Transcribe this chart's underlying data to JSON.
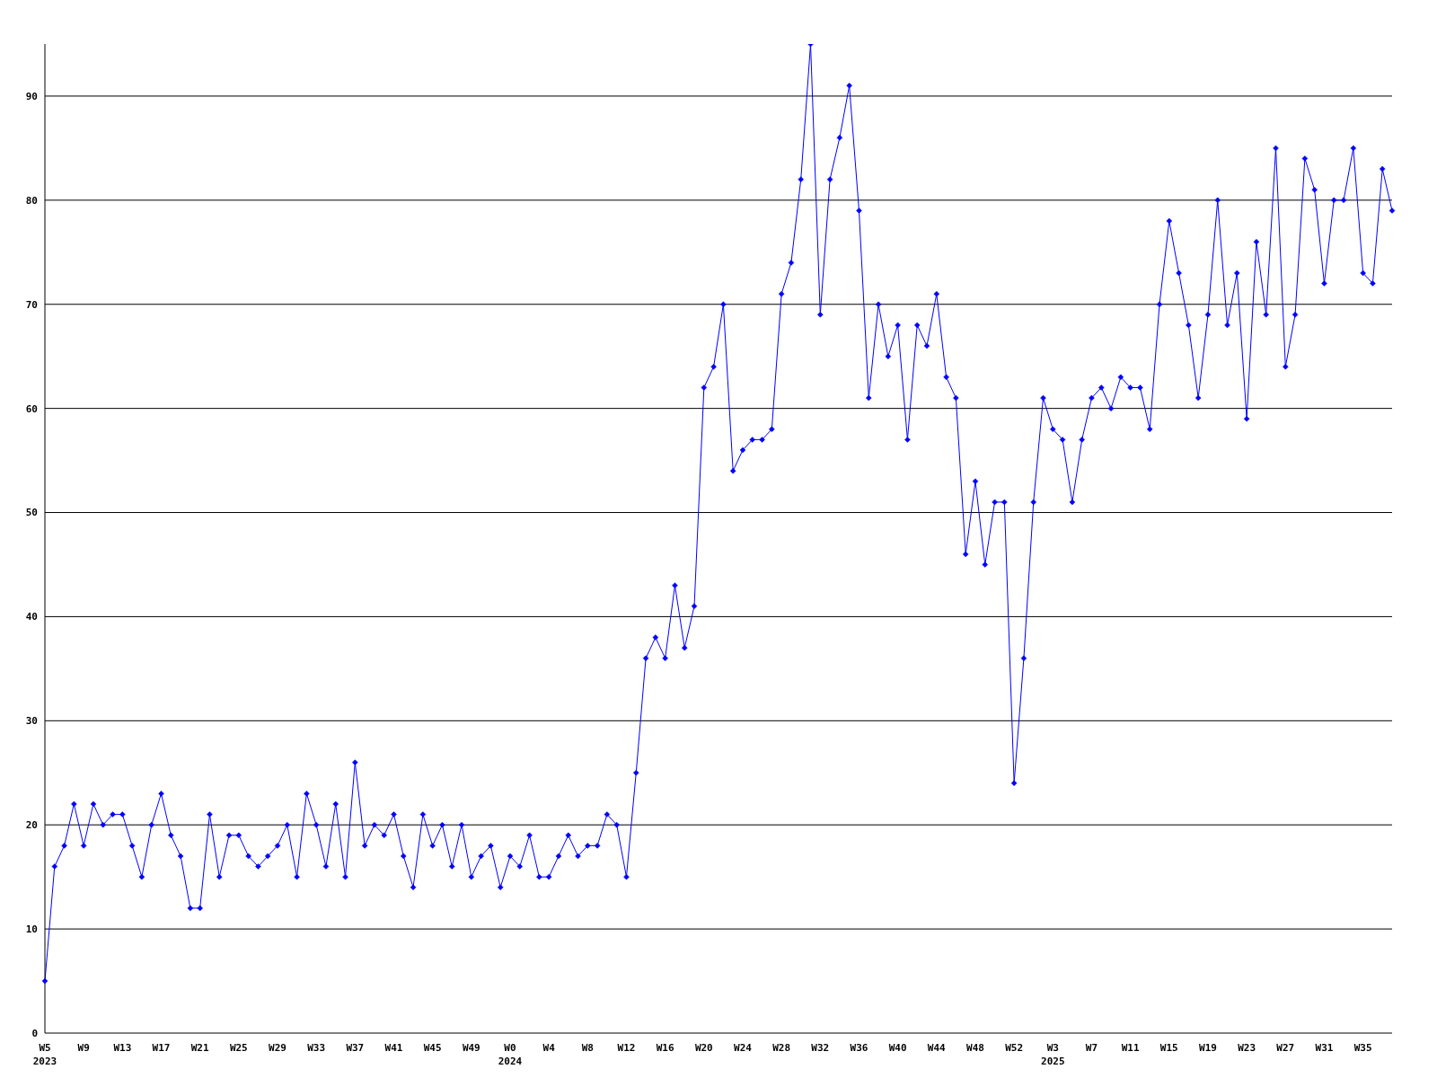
{
  "chart_data": {
    "type": "line",
    "categories": [
      "W5",
      null,
      null,
      null,
      "W9",
      null,
      null,
      null,
      "W13",
      null,
      null,
      null,
      "W17",
      null,
      null,
      null,
      "W21",
      null,
      null,
      null,
      "W25",
      null,
      null,
      null,
      "W29",
      null,
      null,
      null,
      "W33",
      null,
      null,
      null,
      "W37",
      null,
      null,
      null,
      "W41",
      null,
      null,
      null,
      "W45",
      null,
      null,
      null,
      "W49",
      null,
      null,
      null,
      "W0",
      null,
      null,
      null,
      "W4",
      null,
      null,
      null,
      "W8",
      null,
      null,
      null,
      "W12",
      null,
      null,
      null,
      "W16",
      null,
      null,
      null,
      "W20",
      null,
      null,
      null,
      "W24",
      null,
      null,
      null,
      "W28",
      null,
      null,
      null,
      "W32",
      null,
      null,
      null,
      "W36",
      null,
      null,
      null,
      "W40",
      null,
      null,
      null,
      "W44",
      null,
      null,
      null,
      "W48",
      null,
      null,
      null,
      "W52",
      null,
      null,
      null,
      "W3",
      null,
      null,
      null,
      "W7",
      null,
      null,
      null,
      "W11",
      null,
      null,
      null,
      "W15",
      null,
      null,
      null,
      "W19",
      null,
      null,
      null,
      "W23",
      null,
      null,
      null,
      "W27",
      null,
      null,
      null,
      "W31",
      null,
      null,
      null,
      "W35",
      null,
      null,
      null
    ],
    "series": [
      {
        "color": "#0000ff",
        "values": [
          5,
          16,
          18,
          22,
          18,
          22,
          20,
          21,
          21,
          18,
          15,
          20,
          23,
          19,
          17,
          12,
          12,
          21,
          15,
          19,
          19,
          17,
          16,
          17,
          18,
          20,
          15,
          23,
          20,
          16,
          22,
          15,
          26,
          18,
          20,
          19,
          21,
          17,
          14,
          21,
          18,
          20,
          16,
          20,
          15,
          17,
          18,
          14,
          17,
          16,
          19,
          15,
          15,
          17,
          19,
          17,
          18,
          18,
          21,
          20,
          15,
          25,
          36,
          38,
          36,
          43,
          37,
          41,
          62,
          64,
          70,
          54,
          56,
          57,
          57,
          58,
          71,
          74,
          82,
          95,
          69,
          82,
          86,
          91,
          79,
          61,
          70,
          65,
          68,
          57,
          68,
          66,
          71,
          63,
          61,
          46,
          53,
          45,
          51,
          51,
          24,
          36,
          51,
          61,
          58,
          57,
          51,
          57,
          61,
          62,
          60,
          63,
          62,
          62,
          58,
          70,
          78,
          73,
          68,
          61,
          69,
          80,
          68,
          73,
          59,
          76,
          69,
          85,
          64,
          69,
          84,
          81,
          72,
          80,
          80,
          85,
          73,
          72,
          83,
          79
        ]
      }
    ],
    "ylim": [
      0,
      95
    ],
    "yticks": [
      0,
      10,
      20,
      30,
      40,
      50,
      60,
      70,
      80,
      90
    ],
    "grid": "y",
    "marker": "diamond",
    "line_style": "solid",
    "legend": false,
    "annotations": [
      "2023",
      "2024",
      "2025"
    ]
  }
}
